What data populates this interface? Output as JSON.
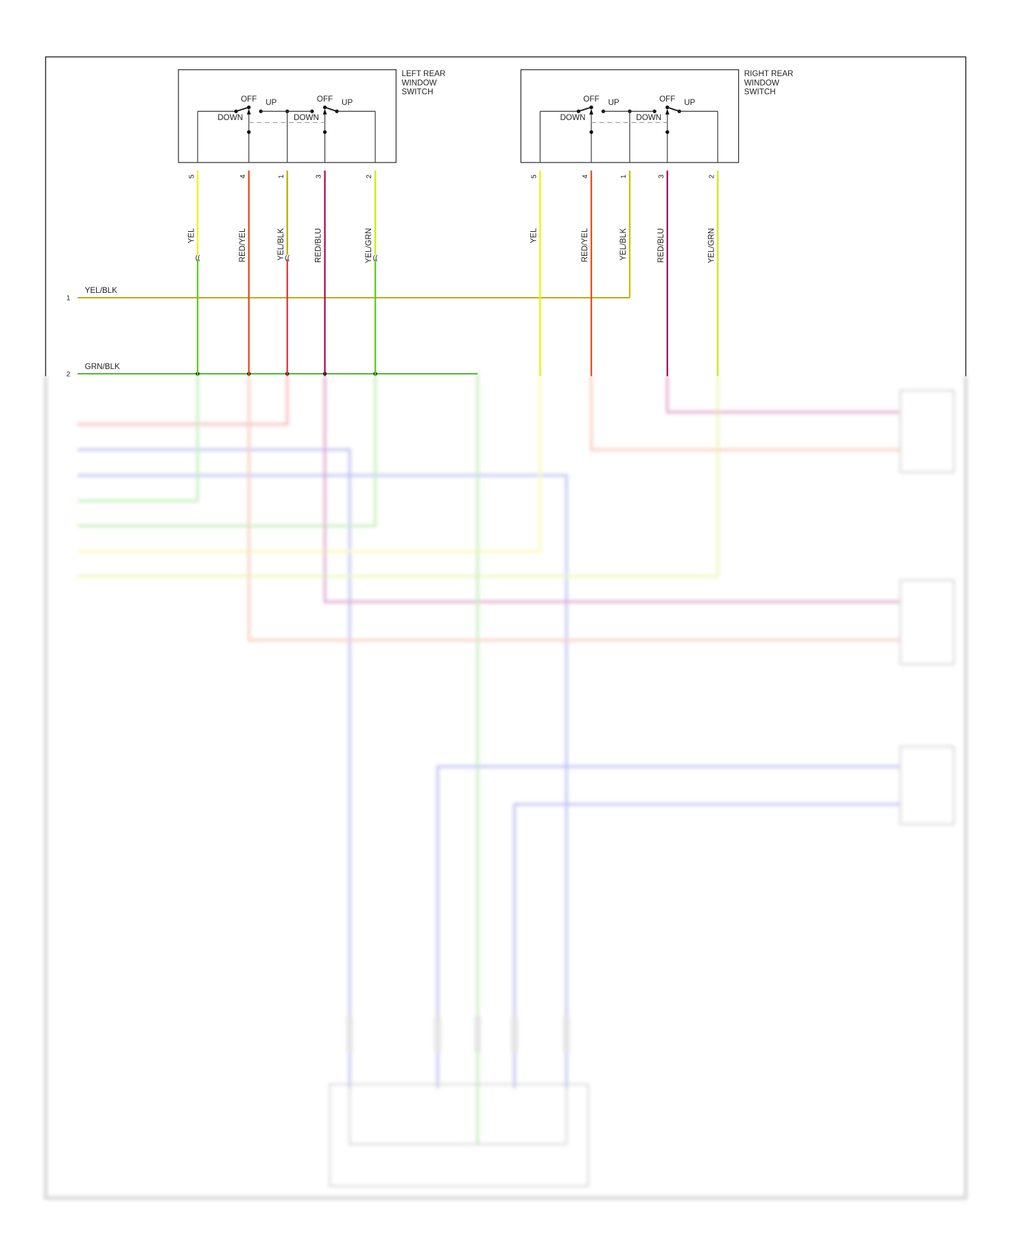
{
  "switches": [
    {
      "title_lines": [
        "LEFT REAR",
        "WINDOW",
        "SWITCH"
      ],
      "contacts": {
        "off": "OFF",
        "up": "UP",
        "down": "DOWN"
      },
      "pins": [
        {
          "pin": "5",
          "wire": "YEL",
          "color": "#f2f200",
          "lower_color": "#5ccf1a",
          "connector": true
        },
        {
          "pin": "4",
          "wire": "RED/YEL",
          "color": "#e0501a",
          "lower_color": "#e0501a",
          "connector": false
        },
        {
          "pin": "1",
          "wire": "YEL/BLK",
          "color": "#b8b000",
          "lower_color": "#d83a3a",
          "connector": true
        },
        {
          "pin": "3",
          "wire": "RED/BLU",
          "color": "#a0105a",
          "lower_color": "#a0105a",
          "connector": false
        },
        {
          "pin": "2",
          "wire": "YEL/GRN",
          "color": "#c8f000",
          "lower_color": "#5ccf1a",
          "connector": true
        }
      ]
    },
    {
      "title_lines": [
        "RIGHT REAR",
        "WINDOW",
        "SWITCH"
      ],
      "contacts": {
        "off": "OFF",
        "up": "UP",
        "down": "DOWN"
      },
      "pins": [
        {
          "pin": "5",
          "wire": "YEL",
          "color": "#f2f200"
        },
        {
          "pin": "4",
          "wire": "RED/YEL",
          "color": "#e0501a"
        },
        {
          "pin": "1",
          "wire": "YEL/BLK",
          "color": "#c8c000"
        },
        {
          "pin": "3",
          "wire": "RED/BLU",
          "color": "#a0105a"
        },
        {
          "pin": "2",
          "wire": "YEL/GRN",
          "color": "#c8f000"
        }
      ]
    }
  ],
  "bus_lines": [
    {
      "number": "1",
      "wire": "YEL/BLK",
      "color": "#b5a800"
    },
    {
      "number": "2",
      "wire": "GRN/BLK",
      "color": "#3cb01a"
    }
  ],
  "obscured_colors": {
    "red": "#f08080",
    "blue": "#8c8ce6",
    "green": "#8ee07a",
    "yellow": "#f4f47a",
    "yelgrn": "#dcf07a",
    "magenta": "#c060a0",
    "orange": "#f4a080",
    "frame": "#b0b0b0"
  }
}
